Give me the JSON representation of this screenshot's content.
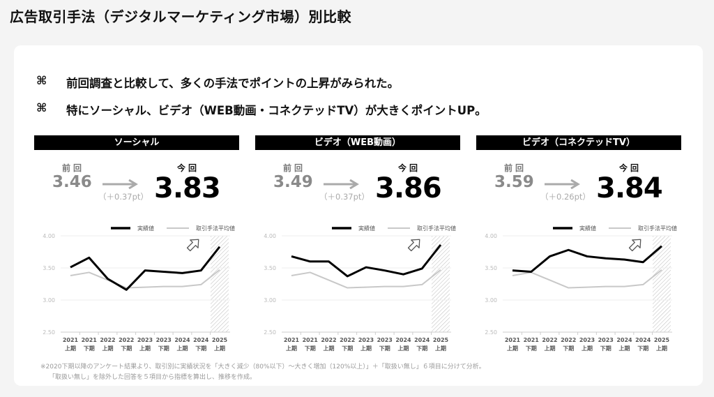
{
  "title": "広告取引手法（デジタルマーケティング市場）別比較",
  "bullets": [
    {
      "icon": "command-icon",
      "mark": "⌘",
      "text": "前回調査と比較して、多くの手法でポイントの上昇がみられた。"
    },
    {
      "icon": "command-icon",
      "mark": "⌘",
      "text": "特にソーシャル、ビデオ（WEB動画・コネクテッドTV）が大きくポイントUP。"
    }
  ],
  "labels": {
    "previous": "前回",
    "current": "今回"
  },
  "footnotes": [
    "※2020下期以降のアンケート結果より、取引別に実績状況を「大きく減少（80%以下）～大きく増加（120%以上）」＋「取扱い無し」６項目に分けて分析。",
    "「取扱い無し」を除外した回答を５項目から指標を算出し、推移を作成。"
  ],
  "colors": {
    "actual": "#000000",
    "average": "#c8c8c8",
    "hatch": "#bbbbbb",
    "header_bg": "#000000"
  },
  "panels": [
    {
      "name": "ソーシャル",
      "previous": "3.46",
      "current": "3.83",
      "diff": "（＋0.37pt）"
    },
    {
      "name": "ビデオ（WEB動画）",
      "previous": "3.49",
      "current": "3.86",
      "diff": "（＋0.37pt）"
    },
    {
      "name": "ビデオ（コネクテッドTV）",
      "previous": "3.59",
      "current": "3.84",
      "diff": "（＋0.26pt）"
    }
  ],
  "chart_data": [
    {
      "type": "line",
      "categories": [
        [
          "2021",
          "上期"
        ],
        [
          "2021",
          "下期"
        ],
        [
          "2022",
          "上期"
        ],
        [
          "2022",
          "下期"
        ],
        [
          "2023",
          "上期"
        ],
        [
          "2023",
          "下期"
        ],
        [
          "2024",
          "上期"
        ],
        [
          "2024",
          "下期"
        ],
        [
          "2025",
          "上期"
        ]
      ],
      "ylim": [
        2.5,
        4.0
      ],
      "yticks": [
        "2.50",
        "3.00",
        "3.50",
        "4.00"
      ],
      "grid": true,
      "legend": "top-right",
      "highlight": "last category hatched, up-arrow icon",
      "series": [
        {
          "name": "実績値",
          "values": [
            3.51,
            3.66,
            3.33,
            3.16,
            3.46,
            3.44,
            3.42,
            3.46,
            3.83
          ]
        },
        {
          "name": "取引手法平均値",
          "values": [
            3.38,
            3.43,
            3.31,
            3.19,
            3.2,
            3.21,
            3.21,
            3.24,
            3.47
          ]
        }
      ]
    },
    {
      "type": "line",
      "categories": [
        [
          "2021",
          "上期"
        ],
        [
          "2021",
          "下期"
        ],
        [
          "2022",
          "上期"
        ],
        [
          "2022",
          "下期"
        ],
        [
          "2023",
          "上期"
        ],
        [
          "2023",
          "下期"
        ],
        [
          "2024",
          "上期"
        ],
        [
          "2024",
          "下期"
        ],
        [
          "2025",
          "上期"
        ]
      ],
      "ylim": [
        2.5,
        4.0
      ],
      "yticks": [
        "2.50",
        "3.00",
        "3.50",
        "4.00"
      ],
      "grid": true,
      "legend": "top-right",
      "highlight": "last category hatched, up-arrow icon",
      "series": [
        {
          "name": "実績値",
          "values": [
            3.68,
            3.6,
            3.6,
            3.37,
            3.51,
            3.46,
            3.4,
            3.49,
            3.86
          ]
        },
        {
          "name": "取引手法平均値",
          "values": [
            3.38,
            3.43,
            3.31,
            3.19,
            3.2,
            3.21,
            3.21,
            3.24,
            3.47
          ]
        }
      ]
    },
    {
      "type": "line",
      "categories": [
        [
          "2021",
          "上期"
        ],
        [
          "2021",
          "下期"
        ],
        [
          "2022",
          "上期"
        ],
        [
          "2022",
          "下期"
        ],
        [
          "2023",
          "上期"
        ],
        [
          "2023",
          "下期"
        ],
        [
          "2024",
          "上期"
        ],
        [
          "2024",
          "下期"
        ],
        [
          "2025",
          "上期"
        ]
      ],
      "ylim": [
        2.5,
        4.0
      ],
      "yticks": [
        "2.50",
        "3.00",
        "3.50",
        "4.00"
      ],
      "grid": true,
      "legend": "top-right",
      "highlight": "last category hatched, up-arrow icon",
      "series": [
        {
          "name": "実績値",
          "values": [
            3.46,
            3.44,
            3.68,
            3.78,
            3.68,
            3.65,
            3.63,
            3.59,
            3.84
          ]
        },
        {
          "name": "取引手法平均値",
          "values": [
            3.38,
            3.43,
            3.31,
            3.19,
            3.2,
            3.21,
            3.21,
            3.24,
            3.47
          ]
        }
      ]
    }
  ]
}
